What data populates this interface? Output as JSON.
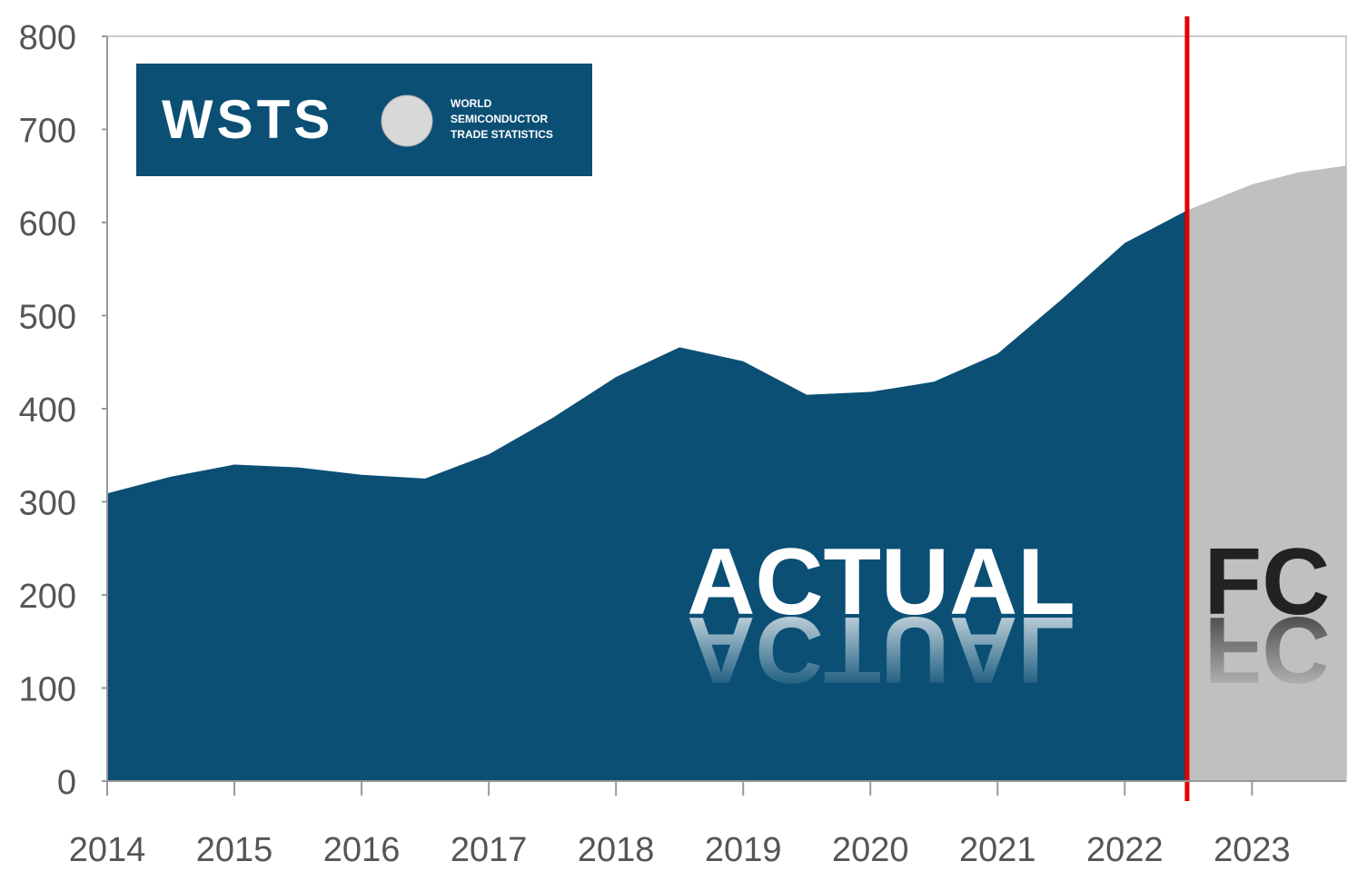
{
  "chart_data": {
    "type": "area",
    "logo": {
      "name": "WSTS",
      "lines": [
        "WORLD",
        "SEMICONDUCTOR",
        "TRADE STATISTICS"
      ]
    },
    "xlim": [
      2014,
      2023.74
    ],
    "xticks": [
      2014,
      2015,
      2016,
      2017,
      2018,
      2019,
      2020,
      2021,
      2022,
      2023
    ],
    "ylim": [
      0,
      800
    ],
    "yticks": [
      0,
      100,
      200,
      300,
      400,
      500,
      600,
      700,
      800
    ],
    "forecast_start": 2022.49,
    "forecast_line_color": "#e00000",
    "series": [
      {
        "name": "ACTUAL",
        "color": "#0b4f75",
        "x": [
          2014,
          2014.5,
          2015,
          2015.5,
          2016,
          2016.5,
          2017,
          2017.5,
          2018,
          2018.5,
          2019,
          2019.5,
          2020,
          2020.5,
          2021,
          2021.5,
          2022,
          2022.49
        ],
        "values": [
          309,
          327,
          340,
          337,
          329,
          325,
          351,
          390,
          434,
          466,
          451,
          415,
          418,
          429,
          459,
          517,
          578,
          613
        ]
      },
      {
        "name": "FC",
        "color": "#c0c0c0",
        "x": [
          2022.49,
          2023,
          2023.37,
          2023.74
        ],
        "values": [
          613,
          641,
          654,
          661
        ]
      }
    ]
  }
}
